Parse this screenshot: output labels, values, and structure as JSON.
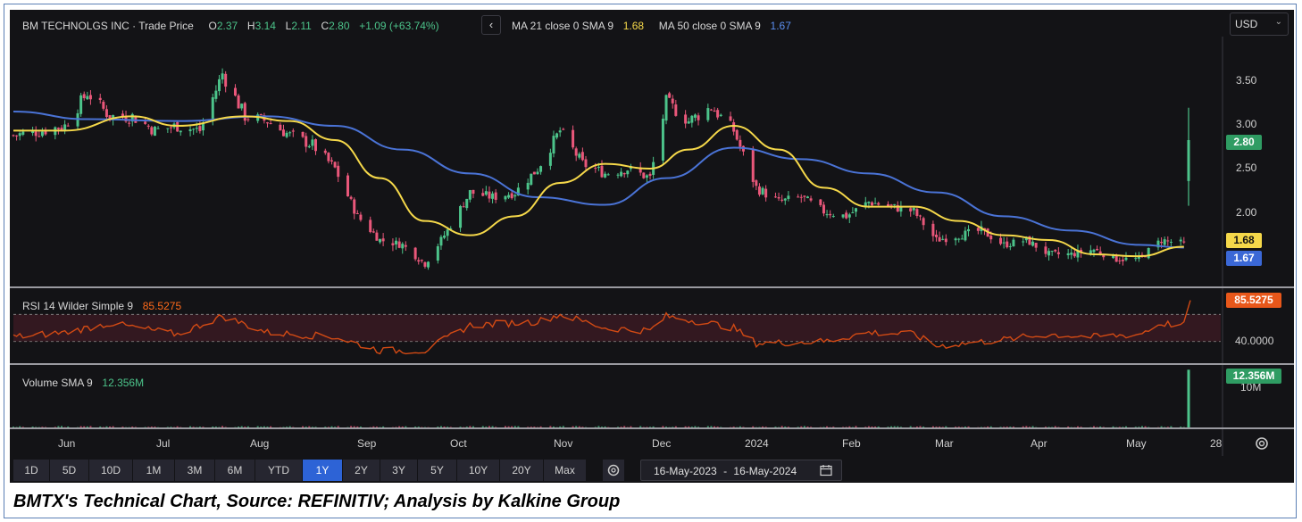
{
  "header": {
    "title": "BM TECHNOLGS INC · Trade Price",
    "o_label": "O",
    "o_value": "2.37",
    "h_label": "H",
    "h_value": "3.14",
    "l_label": "L",
    "l_value": "2.11",
    "c_label": "C",
    "c_value": "2.80",
    "change": "+1.09 (+63.74%)",
    "collapse_glyph": "‹",
    "ma21_label": "MA 21 close 0 SMA 9",
    "ma21_value": "1.68",
    "ma50_label": "MA 50 close 0 SMA 9",
    "ma50_value": "1.67"
  },
  "currency": {
    "label": "USD",
    "chevron": "⌄"
  },
  "price_axis": {
    "ticks": [
      "3.50",
      "3.00",
      "2.50",
      "2.00"
    ],
    "last_tag": "2.80",
    "ma21_tag": "1.68",
    "ma50_tag": "1.67"
  },
  "rsi": {
    "label": "RSI 14 Wilder Simple 9",
    "value": "85.5275",
    "tick": "40.0000",
    "tag": "85.5275"
  },
  "volume": {
    "label": "Volume SMA 9",
    "value": "12.356M",
    "tick": "10M",
    "tag": "12.356M"
  },
  "time_axis": {
    "labels": [
      "Jun",
      "Jul",
      "Aug",
      "Sep",
      "Oct",
      "Nov",
      "Dec",
      "2024",
      "Feb",
      "Mar",
      "Apr",
      "May",
      "28"
    ]
  },
  "timeframes": [
    "1D",
    "5D",
    "10D",
    "1M",
    "3M",
    "6M",
    "YTD",
    "1Y",
    "2Y",
    "3Y",
    "5Y",
    "10Y",
    "20Y",
    "Max"
  ],
  "active_timeframe": "1Y",
  "date_range": {
    "start": "16-May-2023",
    "sep": "-",
    "end": "16-May-2024"
  },
  "caption": "BMTX's Technical Chart, Source: REFINITIV; Analysis by Kalkine Group",
  "colors": {
    "background": "#131316",
    "up": "#4cc38a",
    "down": "#e9577a",
    "ma21": "#f5d84a",
    "ma50": "#4a73d6",
    "rsi": "#d24a14",
    "accent": "#2d63d6"
  },
  "chart_data": {
    "type": "candlestick",
    "title": "BM TECHNOLGS INC · Trade Price",
    "x_range": [
      "2023-05-16",
      "2024-05-16"
    ],
    "ylim": [
      1.3,
      4.0
    ],
    "y_ticks": [
      2.0,
      2.5,
      3.0,
      3.5
    ],
    "last_candle": {
      "open": 2.37,
      "high": 3.14,
      "low": 2.11,
      "close": 2.8
    },
    "price_keypoints": [
      {
        "x": "2023-05-16",
        "close": 2.85
      },
      {
        "x": "2023-05-25",
        "close": 2.9
      },
      {
        "x": "2023-06-01",
        "close": 2.95
      },
      {
        "x": "2023-06-08",
        "close": 3.3
      },
      {
        "x": "2023-06-15",
        "close": 3.05
      },
      {
        "x": "2023-06-22",
        "close": 3.05
      },
      {
        "x": "2023-06-29",
        "close": 2.9
      },
      {
        "x": "2023-07-06",
        "close": 2.95
      },
      {
        "x": "2023-07-13",
        "close": 2.9
      },
      {
        "x": "2023-07-20",
        "close": 3.5
      },
      {
        "x": "2023-07-27",
        "close": 3.05
      },
      {
        "x": "2023-08-03",
        "close": 3.0
      },
      {
        "x": "2023-08-10",
        "close": 2.85
      },
      {
        "x": "2023-08-17",
        "close": 2.75
      },
      {
        "x": "2023-08-24",
        "close": 2.5
      },
      {
        "x": "2023-08-31",
        "close": 2.0
      },
      {
        "x": "2023-09-07",
        "close": 1.75
      },
      {
        "x": "2023-09-14",
        "close": 1.7
      },
      {
        "x": "2023-09-21",
        "close": 1.5
      },
      {
        "x": "2023-09-28",
        "close": 1.85
      },
      {
        "x": "2023-10-05",
        "close": 2.25
      },
      {
        "x": "2023-10-12",
        "close": 2.2
      },
      {
        "x": "2023-10-19",
        "close": 2.25
      },
      {
        "x": "2023-10-26",
        "close": 2.5
      },
      {
        "x": "2023-11-02",
        "close": 2.9
      },
      {
        "x": "2023-11-09",
        "close": 2.55
      },
      {
        "x": "2023-11-16",
        "close": 2.45
      },
      {
        "x": "2023-11-23",
        "close": 2.5
      },
      {
        "x": "2023-11-30",
        "close": 2.4
      },
      {
        "x": "2023-12-05",
        "close": 3.2
      },
      {
        "x": "2023-12-12",
        "close": 3.0
      },
      {
        "x": "2023-12-19",
        "close": 3.15
      },
      {
        "x": "2023-12-26",
        "close": 2.9
      },
      {
        "x": "2024-01-02",
        "close": 2.3
      },
      {
        "x": "2024-01-09",
        "close": 2.15
      },
      {
        "x": "2024-01-16",
        "close": 2.2
      },
      {
        "x": "2024-01-23",
        "close": 2.05
      },
      {
        "x": "2024-01-30",
        "close": 2.0
      },
      {
        "x": "2024-02-06",
        "close": 2.15
      },
      {
        "x": "2024-02-13",
        "close": 2.1
      },
      {
        "x": "2024-02-20",
        "close": 2.05
      },
      {
        "x": "2024-02-27",
        "close": 1.75
      },
      {
        "x": "2024-03-05",
        "close": 1.8
      },
      {
        "x": "2024-03-12",
        "close": 1.85
      },
      {
        "x": "2024-03-19",
        "close": 1.7
      },
      {
        "x": "2024-03-26",
        "close": 1.75
      },
      {
        "x": "2024-04-02",
        "close": 1.6
      },
      {
        "x": "2024-04-09",
        "close": 1.6
      },
      {
        "x": "2024-04-16",
        "close": 1.65
      },
      {
        "x": "2024-04-23",
        "close": 1.55
      },
      {
        "x": "2024-04-30",
        "close": 1.55
      },
      {
        "x": "2024-05-07",
        "close": 1.75
      },
      {
        "x": "2024-05-14",
        "close": 1.71
      }
    ],
    "ma21_keypoints": [
      {
        "x": "2023-05-16",
        "close": 2.9
      },
      {
        "x": "2023-06-01",
        "close": 2.9
      },
      {
        "x": "2023-06-22",
        "close": 3.05
      },
      {
        "x": "2023-07-06",
        "close": 2.95
      },
      {
        "x": "2023-07-27",
        "close": 3.05
      },
      {
        "x": "2023-08-10",
        "close": 3.0
      },
      {
        "x": "2023-08-24",
        "close": 2.8
      },
      {
        "x": "2023-09-07",
        "close": 2.4
      },
      {
        "x": "2023-09-21",
        "close": 1.95
      },
      {
        "x": "2023-10-05",
        "close": 1.8
      },
      {
        "x": "2023-10-19",
        "close": 2.0
      },
      {
        "x": "2023-11-02",
        "close": 2.35
      },
      {
        "x": "2023-11-16",
        "close": 2.55
      },
      {
        "x": "2023-11-30",
        "close": 2.5
      },
      {
        "x": "2023-12-12",
        "close": 2.7
      },
      {
        "x": "2023-12-26",
        "close": 2.95
      },
      {
        "x": "2024-01-09",
        "close": 2.7
      },
      {
        "x": "2024-01-23",
        "close": 2.3
      },
      {
        "x": "2024-02-06",
        "close": 2.1
      },
      {
        "x": "2024-02-20",
        "close": 2.1
      },
      {
        "x": "2024-03-05",
        "close": 1.95
      },
      {
        "x": "2024-03-19",
        "close": 1.8
      },
      {
        "x": "2024-04-02",
        "close": 1.75
      },
      {
        "x": "2024-04-16",
        "close": 1.6
      },
      {
        "x": "2024-04-30",
        "close": 1.58
      },
      {
        "x": "2024-05-14",
        "close": 1.68
      }
    ],
    "ma50_keypoints": [
      {
        "x": "2023-05-16",
        "close": 3.1
      },
      {
        "x": "2023-06-08",
        "close": 3.02
      },
      {
        "x": "2023-07-06",
        "close": 3.0
      },
      {
        "x": "2023-08-03",
        "close": 3.05
      },
      {
        "x": "2023-08-24",
        "close": 2.95
      },
      {
        "x": "2023-09-14",
        "close": 2.7
      },
      {
        "x": "2023-10-05",
        "close": 2.45
      },
      {
        "x": "2023-10-26",
        "close": 2.2
      },
      {
        "x": "2023-11-16",
        "close": 2.12
      },
      {
        "x": "2023-12-05",
        "close": 2.4
      },
      {
        "x": "2023-12-26",
        "close": 2.72
      },
      {
        "x": "2024-01-16",
        "close": 2.6
      },
      {
        "x": "2024-02-06",
        "close": 2.45
      },
      {
        "x": "2024-02-27",
        "close": 2.25
      },
      {
        "x": "2024-03-19",
        "close": 2.0
      },
      {
        "x": "2024-04-09",
        "close": 1.85
      },
      {
        "x": "2024-04-30",
        "close": 1.7
      },
      {
        "x": "2024-05-14",
        "close": 1.67
      }
    ],
    "rsi_ylim": [
      20,
      95
    ],
    "rsi_keypoints": [
      {
        "x": "2023-05-16",
        "value": 45
      },
      {
        "x": "2023-06-01",
        "value": 50
      },
      {
        "x": "2023-06-15",
        "value": 60
      },
      {
        "x": "2023-07-06",
        "value": 48
      },
      {
        "x": "2023-07-20",
        "value": 68
      },
      {
        "x": "2023-08-03",
        "value": 50
      },
      {
        "x": "2023-08-24",
        "value": 45
      },
      {
        "x": "2023-09-07",
        "value": 30
      },
      {
        "x": "2023-09-21",
        "value": 30
      },
      {
        "x": "2023-10-05",
        "value": 58
      },
      {
        "x": "2023-10-26",
        "value": 62
      },
      {
        "x": "2023-11-02",
        "value": 70
      },
      {
        "x": "2023-11-16",
        "value": 55
      },
      {
        "x": "2023-11-30",
        "value": 52
      },
      {
        "x": "2023-12-05",
        "value": 68
      },
      {
        "x": "2023-12-19",
        "value": 60
      },
      {
        "x": "2023-12-26",
        "value": 55
      },
      {
        "x": "2024-01-02",
        "value": 38
      },
      {
        "x": "2024-01-23",
        "value": 40
      },
      {
        "x": "2024-02-06",
        "value": 50
      },
      {
        "x": "2024-02-20",
        "value": 48
      },
      {
        "x": "2024-02-27",
        "value": 35
      },
      {
        "x": "2024-03-19",
        "value": 42
      },
      {
        "x": "2024-04-02",
        "value": 48
      },
      {
        "x": "2024-04-16",
        "value": 45
      },
      {
        "x": "2024-04-30",
        "value": 48
      },
      {
        "x": "2024-05-07",
        "value": 60
      },
      {
        "x": "2024-05-14",
        "value": 58
      },
      {
        "x": "2024-05-16",
        "value": 85.5275
      }
    ],
    "rsi_bands": [
      40,
      70
    ],
    "volume_ylim": [
      0,
      13
    ],
    "volume_last": 12.356,
    "volume_unit": "M"
  }
}
